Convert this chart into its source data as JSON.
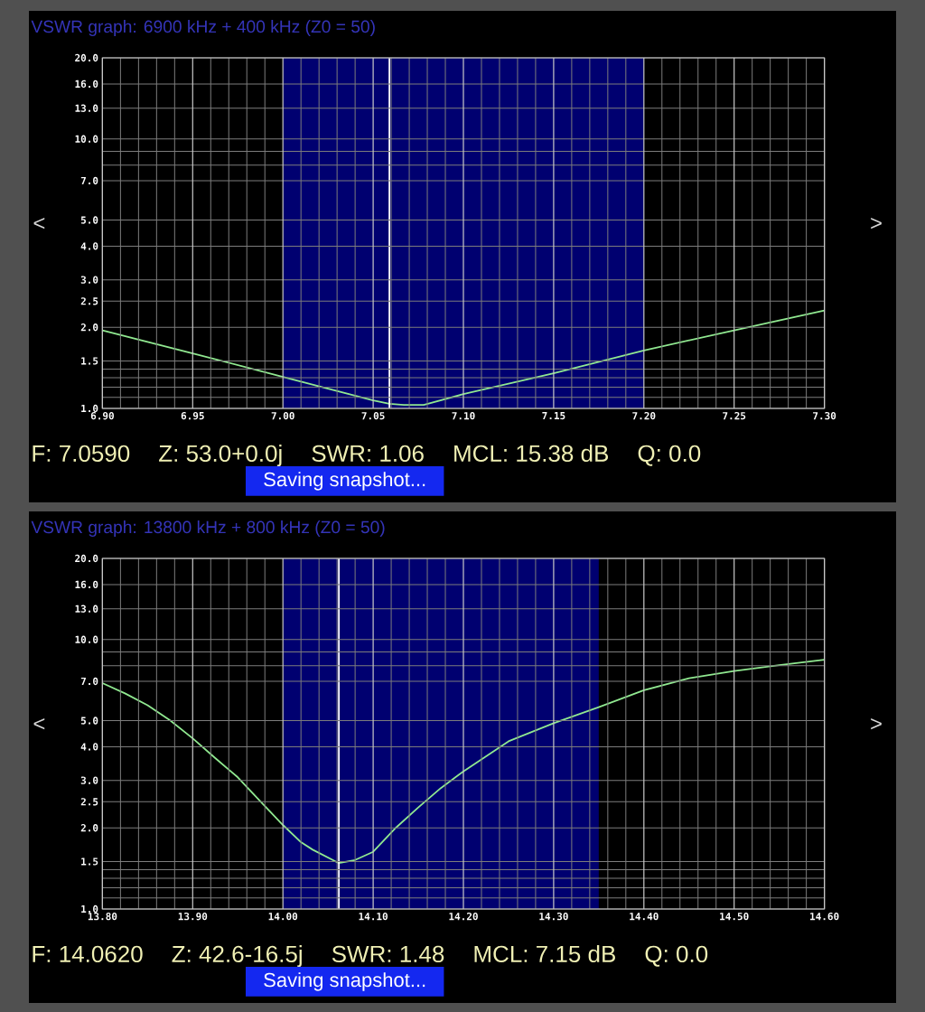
{
  "chart_data": [
    {
      "type": "line",
      "title": "VSWR graph: 6900 kHz + 400 kHz (Z0 = 50)",
      "x": [
        6.9,
        6.95,
        7.0,
        7.05,
        7.059,
        7.067,
        7.078,
        7.1,
        7.15,
        7.2,
        7.25,
        7.3
      ],
      "values": [
        1.95,
        1.6,
        1.31,
        1.07,
        1.04,
        1.03,
        1.03,
        1.13,
        1.35,
        1.64,
        1.95,
        2.31
      ],
      "color": "#90e890",
      "log": "y",
      "grid": true,
      "xlim": [
        6.9,
        7.3
      ],
      "ylim": [
        1,
        20
      ],
      "xticks": [
        {
          "value": 6.9,
          "label": "6.90"
        },
        {
          "value": 6.91,
          "label": null
        },
        {
          "value": 6.92,
          "label": null
        },
        {
          "value": 6.93,
          "label": null
        },
        {
          "value": 6.94,
          "label": null
        },
        {
          "value": 6.95,
          "label": "6.95"
        },
        {
          "value": 6.96,
          "label": null
        },
        {
          "value": 6.97,
          "label": null
        },
        {
          "value": 6.98,
          "label": null
        },
        {
          "value": 6.99,
          "label": null
        },
        {
          "value": 7.0,
          "label": "7.00"
        },
        {
          "value": 7.01,
          "label": null
        },
        {
          "value": 7.02,
          "label": null
        },
        {
          "value": 7.03,
          "label": null
        },
        {
          "value": 7.04,
          "label": null
        },
        {
          "value": 7.05,
          "label": "7.05"
        },
        {
          "value": 7.06,
          "label": null
        },
        {
          "value": 7.07,
          "label": null
        },
        {
          "value": 7.08,
          "label": null
        },
        {
          "value": 7.09,
          "label": null
        },
        {
          "value": 7.1,
          "label": "7.10"
        },
        {
          "value": 7.11,
          "label": null
        },
        {
          "value": 7.12,
          "label": null
        },
        {
          "value": 7.13,
          "label": null
        },
        {
          "value": 7.14,
          "label": null
        },
        {
          "value": 7.15,
          "label": "7.15"
        },
        {
          "value": 7.16,
          "label": null
        },
        {
          "value": 7.17,
          "label": null
        },
        {
          "value": 7.18,
          "label": null
        },
        {
          "value": 7.19,
          "label": null
        },
        {
          "value": 7.2,
          "label": "7.20"
        },
        {
          "value": 7.21,
          "label": null
        },
        {
          "value": 7.22,
          "label": null
        },
        {
          "value": 7.23,
          "label": null
        },
        {
          "value": 7.24,
          "label": null
        },
        {
          "value": 7.25,
          "label": "7.25"
        },
        {
          "value": 7.26,
          "label": null
        },
        {
          "value": 7.27,
          "label": null
        },
        {
          "value": 7.28,
          "label": null
        },
        {
          "value": 7.29,
          "label": null
        },
        {
          "value": 7.3,
          "label": "7.30"
        }
      ],
      "yticks": [
        {
          "value": 1,
          "label": "1.0"
        },
        {
          "value": 1.1,
          "label": null
        },
        {
          "value": 1.2,
          "label": null
        },
        {
          "value": 1.3,
          "label": null
        },
        {
          "value": 1.4,
          "label": null
        },
        {
          "value": 1.5,
          "label": "1.5"
        },
        {
          "value": 2,
          "label": "2.0"
        },
        {
          "value": 2.5,
          "label": "2.5"
        },
        {
          "value": 3,
          "label": "3.0"
        },
        {
          "value": 4,
          "label": "4.0"
        },
        {
          "value": 5,
          "label": "5.0"
        },
        {
          "value": 7,
          "label": "7.0"
        },
        {
          "value": 8,
          "label": null
        },
        {
          "value": 9,
          "label": null
        },
        {
          "value": 10,
          "label": "10.0"
        },
        {
          "value": 13,
          "label": "13.0"
        },
        {
          "value": 16,
          "label": "16.0"
        },
        {
          "value": 20,
          "label": "20.0"
        }
      ],
      "bands": [
        {
          "axis": "x",
          "from": 7.0,
          "to": 7.2,
          "color": "#000070"
        }
      ],
      "ref_lines": [
        {
          "axis": "x",
          "value": 7.059,
          "color": "#ffffff"
        }
      ],
      "annotations": [
        "F: 7.0590",
        "Z: 53.0+0.0j",
        "SWR: 1.06",
        "MCL: 15.38 dB",
        "Q: 0.0",
        "Saving snapshot...",
        "<",
        ">"
      ]
    },
    {
      "type": "line",
      "title": "VSWR graph: 13800 kHz + 800 kHz (Z0 = 50)",
      "x": [
        13.8,
        13.825,
        13.85,
        13.875,
        13.9,
        13.925,
        13.95,
        13.975,
        14.0,
        14.02,
        14.033,
        14.062,
        14.08,
        14.1,
        14.125,
        14.15,
        14.175,
        14.2,
        14.25,
        14.3,
        14.35,
        14.4,
        14.45,
        14.5,
        14.55,
        14.6
      ],
      "values": [
        6.89,
        6.31,
        5.7,
        5.01,
        4.3,
        3.63,
        3.08,
        2.51,
        2.05,
        1.77,
        1.66,
        1.48,
        1.52,
        1.63,
        2.0,
        2.38,
        2.81,
        3.24,
        4.19,
        4.89,
        5.61,
        6.48,
        7.18,
        7.64,
        8.04,
        8.42
      ],
      "color": "#90e890",
      "log": "y",
      "grid": true,
      "xlim": [
        13.8,
        14.6
      ],
      "ylim": [
        1,
        20
      ],
      "xticks": [
        {
          "value": 13.8,
          "label": "13.80"
        },
        {
          "value": 13.82,
          "label": null
        },
        {
          "value": 13.84,
          "label": null
        },
        {
          "value": 13.86,
          "label": null
        },
        {
          "value": 13.88,
          "label": null
        },
        {
          "value": 13.9,
          "label": "13.90"
        },
        {
          "value": 13.92,
          "label": null
        },
        {
          "value": 13.94,
          "label": null
        },
        {
          "value": 13.96,
          "label": null
        },
        {
          "value": 13.98,
          "label": null
        },
        {
          "value": 14.0,
          "label": "14.00"
        },
        {
          "value": 14.02,
          "label": null
        },
        {
          "value": 14.04,
          "label": null
        },
        {
          "value": 14.06,
          "label": null
        },
        {
          "value": 14.08,
          "label": null
        },
        {
          "value": 14.1,
          "label": "14.10"
        },
        {
          "value": 14.12,
          "label": null
        },
        {
          "value": 14.14,
          "label": null
        },
        {
          "value": 14.16,
          "label": null
        },
        {
          "value": 14.18,
          "label": null
        },
        {
          "value": 14.2,
          "label": "14.20"
        },
        {
          "value": 14.22,
          "label": null
        },
        {
          "value": 14.24,
          "label": null
        },
        {
          "value": 14.26,
          "label": null
        },
        {
          "value": 14.28,
          "label": null
        },
        {
          "value": 14.3,
          "label": "14.30"
        },
        {
          "value": 14.32,
          "label": null
        },
        {
          "value": 14.34,
          "label": null
        },
        {
          "value": 14.36,
          "label": null
        },
        {
          "value": 14.38,
          "label": null
        },
        {
          "value": 14.4,
          "label": "14.40"
        },
        {
          "value": 14.42,
          "label": null
        },
        {
          "value": 14.44,
          "label": null
        },
        {
          "value": 14.46,
          "label": null
        },
        {
          "value": 14.48,
          "label": null
        },
        {
          "value": 14.5,
          "label": "14.50"
        },
        {
          "value": 14.52,
          "label": null
        },
        {
          "value": 14.54,
          "label": null
        },
        {
          "value": 14.56,
          "label": null
        },
        {
          "value": 14.58,
          "label": null
        },
        {
          "value": 14.6,
          "label": "14.60"
        }
      ],
      "yticks": [
        {
          "value": 1,
          "label": "1.0"
        },
        {
          "value": 1.1,
          "label": null
        },
        {
          "value": 1.2,
          "label": null
        },
        {
          "value": 1.3,
          "label": null
        },
        {
          "value": 1.4,
          "label": null
        },
        {
          "value": 1.5,
          "label": "1.5"
        },
        {
          "value": 2,
          "label": "2.0"
        },
        {
          "value": 2.5,
          "label": "2.5"
        },
        {
          "value": 3,
          "label": "3.0"
        },
        {
          "value": 4,
          "label": "4.0"
        },
        {
          "value": 5,
          "label": "5.0"
        },
        {
          "value": 7,
          "label": "7.0"
        },
        {
          "value": 8,
          "label": null
        },
        {
          "value": 9,
          "label": null
        },
        {
          "value": 10,
          "label": "10.0"
        },
        {
          "value": 13,
          "label": "13.0"
        },
        {
          "value": 16,
          "label": "16.0"
        },
        {
          "value": 20,
          "label": "20.0"
        }
      ],
      "bands": [
        {
          "axis": "x",
          "from": 14.0,
          "to": 14.35,
          "color": "#000070"
        }
      ],
      "ref_lines": [
        {
          "axis": "x",
          "value": 14.062,
          "color": "#ffffff"
        }
      ],
      "annotations": [
        "F: 14.0620",
        "Z: 42.6-16.5j",
        "SWR: 1.48",
        "MCL: 7.15 dB",
        "Q: 0.0",
        "Saving snapshot...",
        "<",
        ">"
      ]
    }
  ]
}
